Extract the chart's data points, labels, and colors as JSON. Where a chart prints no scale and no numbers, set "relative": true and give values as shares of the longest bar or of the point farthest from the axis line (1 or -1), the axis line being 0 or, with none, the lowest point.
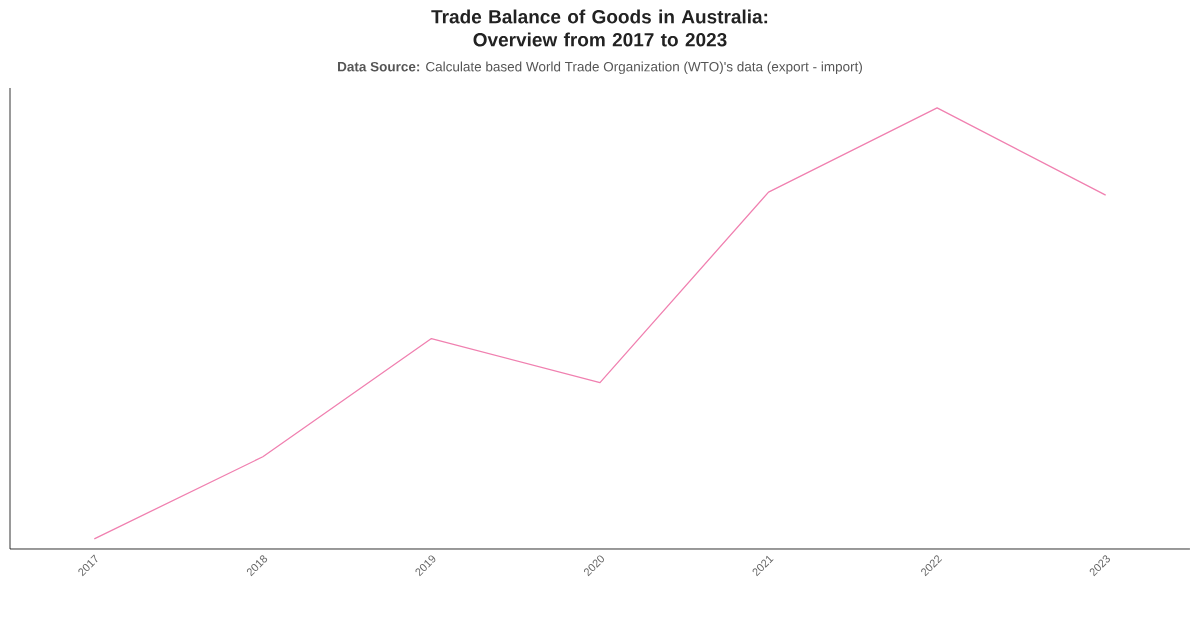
{
  "chart_data": {
    "type": "line",
    "title": "Trade Balance of Goods in Australia: Overview from 2017 to 2023",
    "subtitle": "**Data Source:** Calculate based World Trade Organization (WTO)'s data (export - import)",
    "categories": [
      "2017",
      "2018",
      "2019",
      "2020",
      "2021",
      "2022",
      "2023"
    ],
    "relative": true,
    "series": [
      {
        "color": "#f080b0",
        "values": [
          0.023,
          0.209,
          0.477,
          0.377,
          0.809,
          1,
          0.802
        ]
      }
    ]
  }
}
